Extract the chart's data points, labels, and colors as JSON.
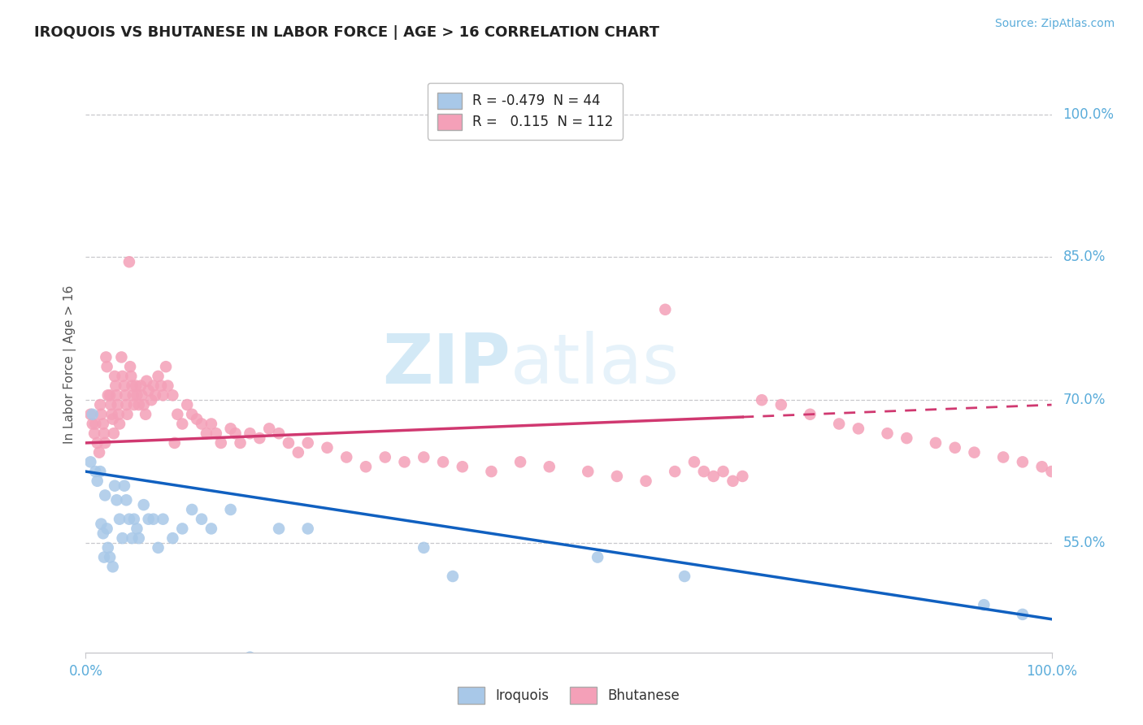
{
  "title": "IROQUOIS VS BHUTANESE IN LABOR FORCE | AGE > 16 CORRELATION CHART",
  "source_text": "Source: ZipAtlas.com",
  "ylabel": "In Labor Force | Age > 16",
  "watermark_zip": "ZIP",
  "watermark_atlas": "atlas",
  "legend_iroquois_R": "-0.479",
  "legend_iroquois_N": "44",
  "legend_bhutanese_R": "0.115",
  "legend_bhutanese_N": "112",
  "iroquois_color": "#a8c8e8",
  "bhutanese_color": "#f4a0b8",
  "iroquois_line_color": "#1060c0",
  "bhutanese_line_color": "#d03870",
  "grid_color": "#c8c8cc",
  "background_color": "#ffffff",
  "axis_label_color": "#5aacda",
  "title_color": "#222222",
  "ytick_labels": [
    "55.0%",
    "70.0%",
    "85.0%",
    "100.0%"
  ],
  "ytick_values": [
    0.55,
    0.7,
    0.85,
    1.0
  ],
  "xlim": [
    0.0,
    1.0
  ],
  "ylim": [
    0.435,
    1.04
  ],
  "iroquois_x": [
    0.005,
    0.007,
    0.01,
    0.012,
    0.015,
    0.016,
    0.018,
    0.019,
    0.02,
    0.022,
    0.023,
    0.025,
    0.028,
    0.03,
    0.032,
    0.035,
    0.038,
    0.04,
    0.042,
    0.045,
    0.048,
    0.05,
    0.053,
    0.055,
    0.06,
    0.065,
    0.07,
    0.075,
    0.08,
    0.09,
    0.1,
    0.11,
    0.12,
    0.13,
    0.15,
    0.17,
    0.2,
    0.23,
    0.35,
    0.38,
    0.53,
    0.62,
    0.93,
    0.97
  ],
  "iroquois_y": [
    0.635,
    0.685,
    0.625,
    0.615,
    0.625,
    0.57,
    0.56,
    0.535,
    0.6,
    0.565,
    0.545,
    0.535,
    0.525,
    0.61,
    0.595,
    0.575,
    0.555,
    0.61,
    0.595,
    0.575,
    0.555,
    0.575,
    0.565,
    0.555,
    0.59,
    0.575,
    0.575,
    0.545,
    0.575,
    0.555,
    0.565,
    0.585,
    0.575,
    0.565,
    0.585,
    0.43,
    0.565,
    0.565,
    0.545,
    0.515,
    0.535,
    0.515,
    0.485,
    0.475
  ],
  "bhutanese_x": [
    0.005,
    0.007,
    0.009,
    0.01,
    0.012,
    0.014,
    0.015,
    0.016,
    0.018,
    0.019,
    0.02,
    0.021,
    0.022,
    0.023,
    0.025,
    0.026,
    0.027,
    0.028,
    0.029,
    0.03,
    0.031,
    0.032,
    0.033,
    0.034,
    0.035,
    0.037,
    0.038,
    0.04,
    0.041,
    0.042,
    0.043,
    0.045,
    0.046,
    0.047,
    0.048,
    0.049,
    0.05,
    0.052,
    0.053,
    0.055,
    0.057,
    0.058,
    0.06,
    0.062,
    0.063,
    0.065,
    0.068,
    0.07,
    0.072,
    0.075,
    0.078,
    0.08,
    0.083,
    0.085,
    0.09,
    0.092,
    0.095,
    0.1,
    0.105,
    0.11,
    0.115,
    0.12,
    0.125,
    0.13,
    0.135,
    0.14,
    0.15,
    0.155,
    0.16,
    0.17,
    0.18,
    0.19,
    0.2,
    0.21,
    0.22,
    0.23,
    0.25,
    0.27,
    0.29,
    0.31,
    0.33,
    0.35,
    0.37,
    0.39,
    0.42,
    0.45,
    0.48,
    0.52,
    0.55,
    0.58,
    0.61,
    0.64,
    0.65,
    0.67,
    0.6,
    0.63,
    0.66,
    0.68,
    0.7,
    0.72,
    0.75,
    0.78,
    0.8,
    0.83,
    0.85,
    0.88,
    0.9,
    0.92,
    0.95,
    0.97,
    0.99,
    1.0
  ],
  "bhutanese_y": [
    0.685,
    0.675,
    0.665,
    0.675,
    0.655,
    0.645,
    0.695,
    0.685,
    0.675,
    0.665,
    0.655,
    0.745,
    0.735,
    0.705,
    0.705,
    0.695,
    0.685,
    0.68,
    0.665,
    0.725,
    0.715,
    0.705,
    0.695,
    0.685,
    0.675,
    0.745,
    0.725,
    0.715,
    0.705,
    0.695,
    0.685,
    0.845,
    0.735,
    0.725,
    0.715,
    0.705,
    0.695,
    0.715,
    0.705,
    0.695,
    0.715,
    0.705,
    0.695,
    0.685,
    0.72,
    0.71,
    0.7,
    0.715,
    0.705,
    0.725,
    0.715,
    0.705,
    0.735,
    0.715,
    0.705,
    0.655,
    0.685,
    0.675,
    0.695,
    0.685,
    0.68,
    0.675,
    0.665,
    0.675,
    0.665,
    0.655,
    0.67,
    0.665,
    0.655,
    0.665,
    0.66,
    0.67,
    0.665,
    0.655,
    0.645,
    0.655,
    0.65,
    0.64,
    0.63,
    0.64,
    0.635,
    0.64,
    0.635,
    0.63,
    0.625,
    0.635,
    0.63,
    0.625,
    0.62,
    0.615,
    0.625,
    0.625,
    0.62,
    0.615,
    0.795,
    0.635,
    0.625,
    0.62,
    0.7,
    0.695,
    0.685,
    0.675,
    0.67,
    0.665,
    0.66,
    0.655,
    0.65,
    0.645,
    0.64,
    0.635,
    0.63,
    0.625
  ]
}
